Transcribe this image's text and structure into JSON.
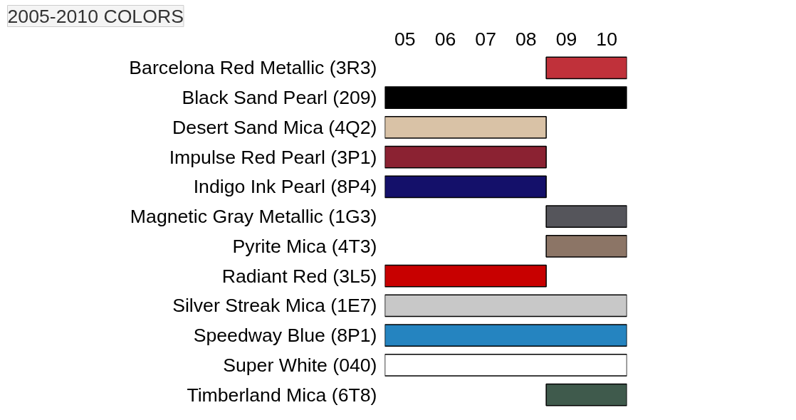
{
  "chart_data": {
    "type": "bar",
    "orientation": "horizontal",
    "title": "2005-2010 COLORS",
    "categories": [
      "Barcelona Red Metallic (3R3)",
      "Black Sand Pearl (209)",
      "Desert Sand Mica (4Q2)",
      "Impulse Red Pearl (3P1)",
      "Indigo Ink Pearl (8P4)",
      "Magnetic Gray Metallic (1G3)",
      "Pyrite Mica (4T3)",
      "Radiant Red (3L5)",
      "Silver Streak Mica (1E7)",
      "Speedway Blue (8P1)",
      "Super White (040)",
      "Timberland Mica (6T8)"
    ],
    "base": [
      2008.5,
      2004.5,
      2004.5,
      2004.5,
      2004.5,
      2008.5,
      2008.5,
      2004.5,
      2004.5,
      2004.5,
      2004.5,
      2008.5
    ],
    "values": [
      2,
      6,
      4,
      4,
      4,
      2,
      2,
      4,
      6,
      6,
      6,
      2
    ],
    "colors": [
      "#c0313a",
      "#000000",
      "#d9c2a6",
      "#8b2232",
      "#14106a",
      "#55555b",
      "#8c7566",
      "#c80000",
      "#c8c8c8",
      "#2584c0",
      "#ffffff",
      "#3f5a4c"
    ],
    "xlim": [
      2004.5,
      2010.5
    ],
    "xticks": [
      {
        "value": 2005,
        "label": "05"
      },
      {
        "value": 2006,
        "label": "06"
      },
      {
        "value": 2007,
        "label": "07"
      },
      {
        "value": 2008,
        "label": "08"
      },
      {
        "value": 2009,
        "label": "09"
      },
      {
        "value": 2010,
        "label": "10"
      }
    ],
    "grid": false
  }
}
